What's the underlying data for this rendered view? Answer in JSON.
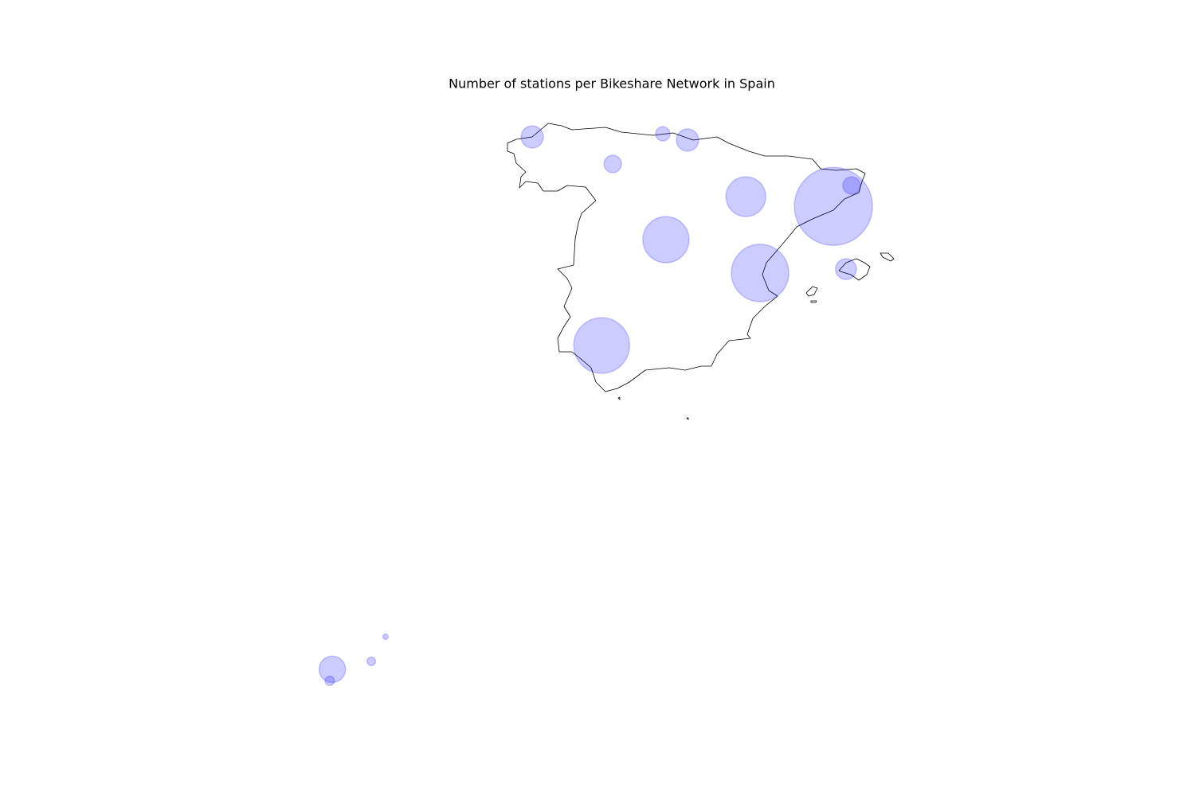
{
  "chart_data": {
    "type": "scatter",
    "title": "Number of stations per Bikeshare Network in Spain",
    "x": [
      -8.43,
      -3.84,
      -2.97,
      -5.6,
      -0.92,
      2.16,
      2.8,
      -3.73,
      -0.42,
      2.6,
      -5.99,
      -13.59,
      -14.09,
      -15.46,
      -15.55
    ],
    "series": [
      {
        "color": "#0000ff",
        "values": [
          43.41,
          43.5,
          43.32,
          42.63,
          41.69,
          41.41,
          42.01,
          40.45,
          39.49,
          39.6,
          37.4,
          29.01,
          28.3,
          28.07,
          27.74
        ],
        "sizes": [
          34,
          14,
          34,
          21,
          109,
          420,
          21,
          147,
          227,
          30,
          214,
          2,
          5,
          48,
          6
        ]
      }
    ],
    "xlim": [
      -18.5,
      5.5
    ],
    "ylim": [
      27,
      44.5
    ]
  }
}
